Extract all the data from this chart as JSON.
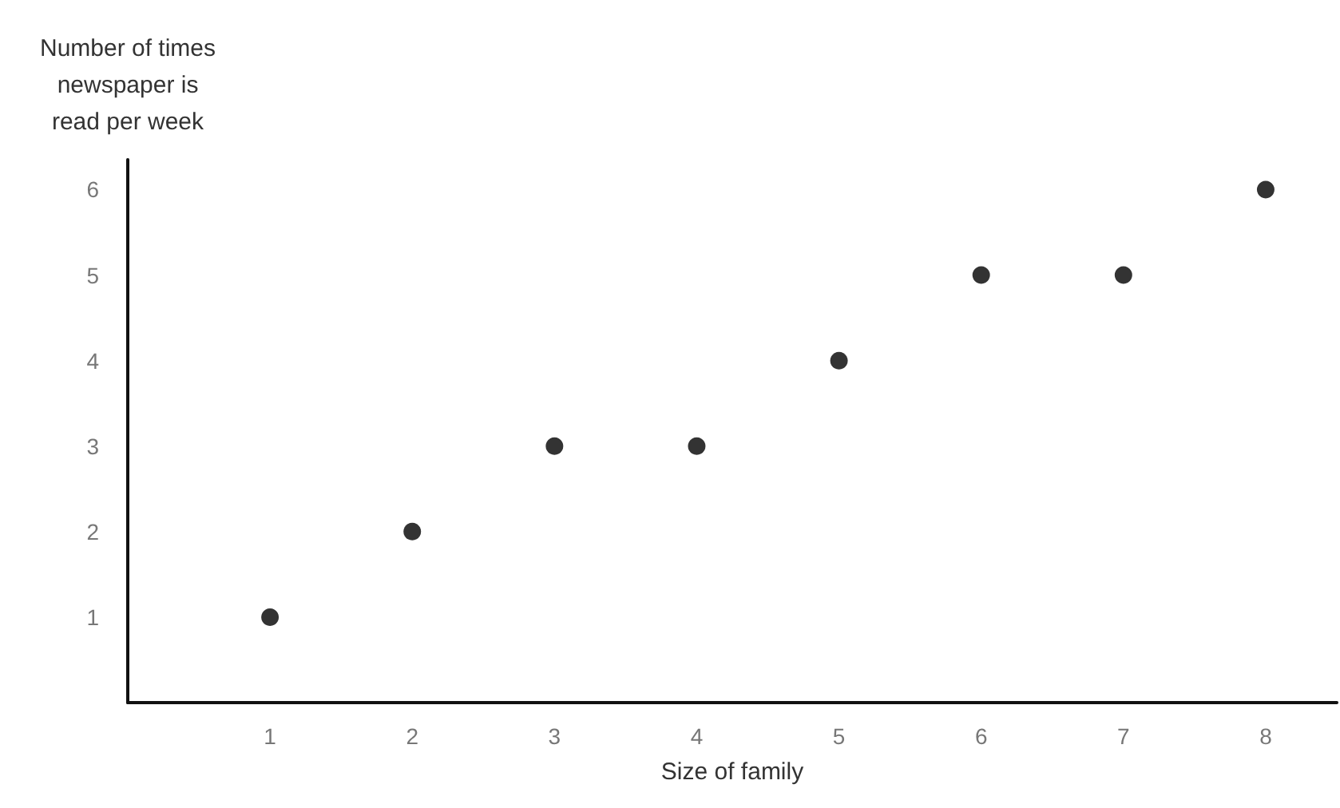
{
  "chart_data": {
    "type": "scatter",
    "xlabel": "Size of family",
    "ylabel": "Number of times\nnewspaper is\nread per week",
    "x": [
      1,
      2,
      3,
      4,
      5,
      6,
      7,
      8
    ],
    "values": [
      1,
      2,
      3,
      3,
      4,
      5,
      5,
      6
    ],
    "color": "#000000",
    "marker": "circle",
    "xlim": [
      0,
      8.5
    ],
    "xticks": [
      1,
      2,
      3,
      4,
      5,
      6,
      7,
      8
    ],
    "ylim": [
      0,
      6.35
    ],
    "yticks": [
      1,
      2,
      3,
      4,
      5,
      6
    ],
    "grid": false
  }
}
